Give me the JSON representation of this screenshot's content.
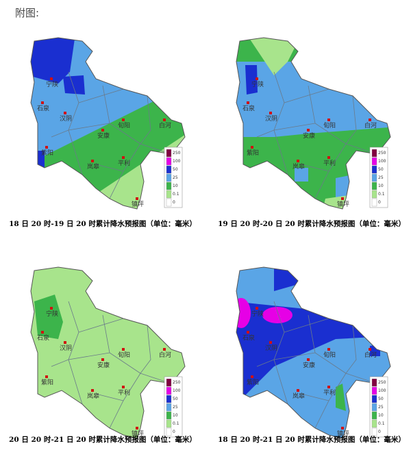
{
  "header": {
    "title": "附图:"
  },
  "cities": [
    "宁陕",
    "石泉",
    "汉阴",
    "紫阳",
    "安康",
    "旬阳",
    "白河",
    "平利",
    "岚皋",
    "镇坪"
  ],
  "legend": {
    "labels": [
      "250",
      "100",
      "50",
      "25",
      "10",
      "0.1",
      "0"
    ]
  },
  "maps": [
    {
      "caption": "18 日 20 时-19 日 20 时累计降水预报图（单位：毫米）"
    },
    {
      "caption": "19 日 20 时-20 日 20 时累计降水预报图（单位：毫米）"
    },
    {
      "caption": "20 日 20 时-21 日 20 时累计降水预报图（单位：毫米）"
    },
    {
      "caption": "18 日 20 时-21 日 20 时累计降水预报图（单位：毫米）"
    }
  ]
}
